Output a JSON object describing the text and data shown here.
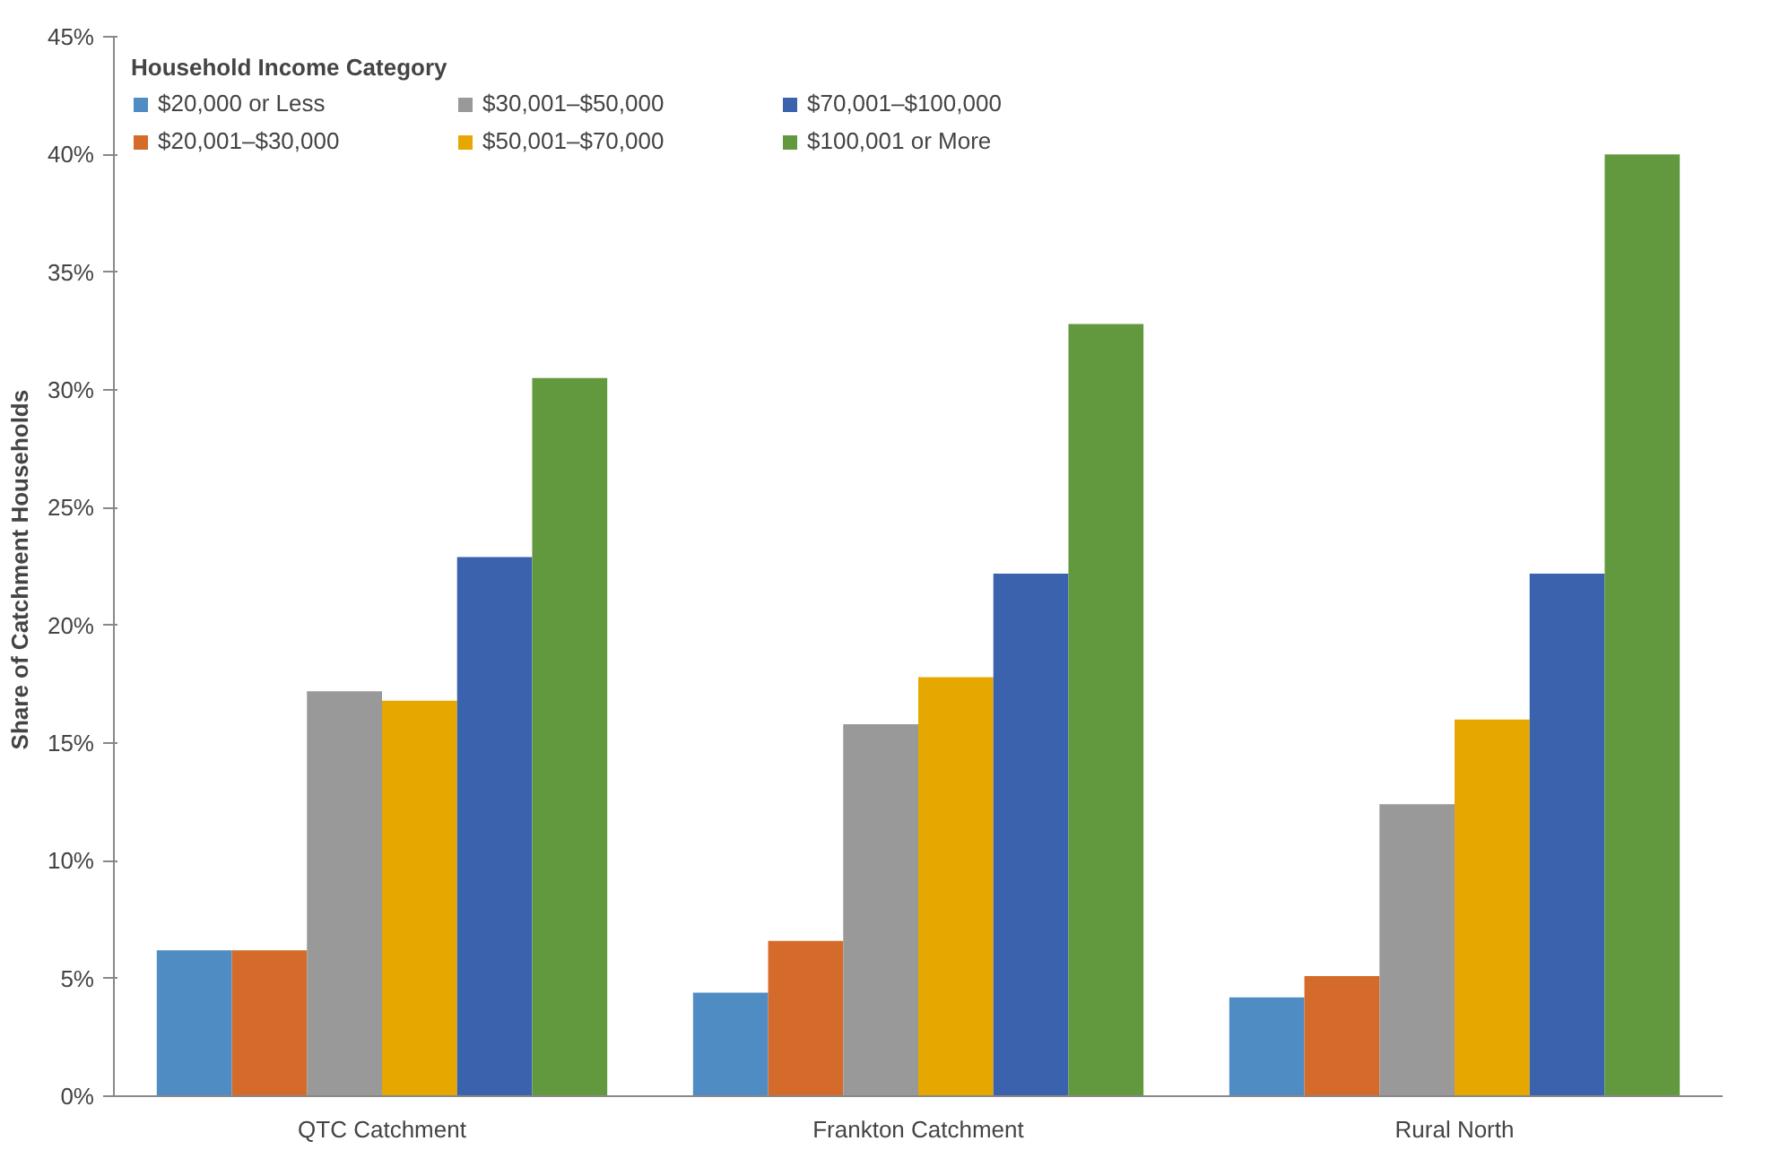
{
  "chart_data": {
    "type": "bar",
    "ylabel": "Share of  Catchment Households",
    "legend_title": "Household Income Category",
    "legend": "top left",
    "grid": false,
    "categories": [
      "QTC Catchment",
      "Frankton Catchment",
      "Rural North"
    ],
    "ylim": [
      0,
      45
    ],
    "yticks": [
      {
        "value": 0,
        "label": "0%"
      },
      {
        "value": 5,
        "label": "5%"
      },
      {
        "value": 10,
        "label": "10%"
      },
      {
        "value": 15,
        "label": "15%"
      },
      {
        "value": 20,
        "label": "20%"
      },
      {
        "value": 25,
        "label": "25%"
      },
      {
        "value": 30,
        "label": "30%"
      },
      {
        "value": 35,
        "label": "35%"
      },
      {
        "value": 40,
        "label": "40%"
      },
      {
        "value": 45,
        "label": "45%"
      }
    ],
    "series": [
      {
        "name": "$20,000 or Less",
        "color": "#4f8cc4",
        "values": [
          6.2,
          4.4,
          4.2
        ]
      },
      {
        "name": "$20,001–$30,000",
        "color": "#d46b2a",
        "values": [
          6.2,
          6.6,
          5.1
        ]
      },
      {
        "name": "$30,001–$50,000",
        "color": "#999999",
        "values": [
          17.2,
          15.8,
          12.4
        ]
      },
      {
        "name": "$50,001–$70,000",
        "color": "#e6a800",
        "values": [
          16.8,
          17.8,
          16.0
        ]
      },
      {
        "name": "$70,001–$100,000",
        "color": "#3a62ad",
        "values": [
          22.9,
          22.2,
          22.2
        ]
      },
      {
        "name": "$100,001 or More",
        "color": "#62993e",
        "values": [
          30.5,
          32.8,
          40.0
        ]
      }
    ]
  }
}
